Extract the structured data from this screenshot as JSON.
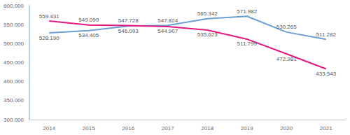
{
  "chart_data": {
    "type": "line",
    "categories": [
      "2014",
      "2015",
      "2016",
      "2017",
      "2018",
      "2019",
      "2020",
      "2021"
    ],
    "series": [
      {
        "name": null,
        "color": "#6a9fd6",
        "values": [
          528190,
          534405,
          546093,
          547824,
          565342,
          571982,
          530265,
          511282
        ],
        "value_labels": [
          "528.190",
          "534.405",
          "546.093",
          "547.824",
          "565.342",
          "571.982",
          "530.265",
          "511.282"
        ]
      },
      {
        "name": null,
        "color": "#e5177f",
        "values": [
          559431,
          549099,
          547728,
          544907,
          535623,
          511799,
          472981,
          433543
        ],
        "value_labels": [
          "559.431",
          "549.099",
          "547.728",
          "544.907",
          "535.623",
          "511.799",
          "472.981",
          "433.543"
        ]
      }
    ],
    "ylim": [
      300000,
      600000
    ],
    "yticks": [
      {
        "value": 300000,
        "label": "300.000"
      },
      {
        "value": 350000,
        "label": "350.000"
      },
      {
        "value": 400000,
        "label": "400.000"
      },
      {
        "value": 450000,
        "label": "450.000"
      },
      {
        "value": 500000,
        "label": "500.000"
      },
      {
        "value": 550000,
        "label": "550.000"
      },
      {
        "value": 600000,
        "label": "600.000"
      }
    ],
    "grid": false,
    "data_labels": true
  }
}
